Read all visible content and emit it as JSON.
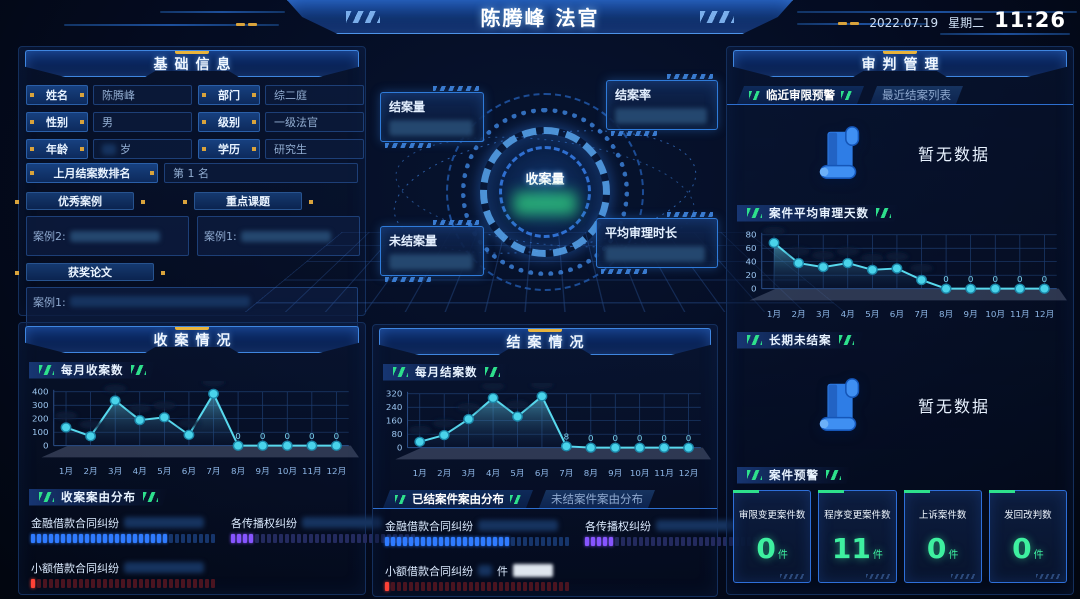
{
  "header": {
    "title": "陈腾峰 法官",
    "date": "2022.07.19",
    "weekday": "星期二",
    "time": "11:26"
  },
  "basic_info": {
    "title": "基础信息",
    "fields": [
      {
        "label": "姓名",
        "value": "陈腾峰"
      },
      {
        "label": "部门",
        "value": "综二庭"
      },
      {
        "label": "性别",
        "value": "男"
      },
      {
        "label": "级别",
        "value": "一级法官"
      },
      {
        "label": "年龄",
        "value": "岁",
        "censored": true
      },
      {
        "label": "学历",
        "value": "研究生"
      }
    ],
    "rank": {
      "label": "上月结案数排名",
      "value": "第 1 名"
    },
    "excellent": {
      "label": "优秀案例",
      "content": "案例2:"
    },
    "key_topic": {
      "label": "重点课题",
      "content": "案例1:"
    },
    "award": {
      "label": "获奖论文",
      "content": "案例1:"
    }
  },
  "center": {
    "core_label": "收案量",
    "callouts": [
      {
        "label": "结案量"
      },
      {
        "label": "结案率"
      },
      {
        "label": "未结案量"
      },
      {
        "label": "平均审理时长"
      }
    ]
  },
  "intake": {
    "title": "收案情况",
    "chart_badge": "每月收案数",
    "dist_badge": "收案案由分布",
    "bars": [
      {
        "label": "金融借款合同纠纷",
        "color_key": "blue",
        "filled": 23,
        "total": 31
      },
      {
        "label": "各传播权纠纷",
        "color_key": "purple",
        "filled": 4,
        "total": 31
      },
      {
        "label": "小额借款合同纠纷",
        "color_key": "red",
        "filled": 1,
        "total": 31
      }
    ]
  },
  "closure": {
    "title": "结案情况",
    "chart_badge": "每月结案数",
    "tabs": [
      {
        "label": "已结案件案由分布",
        "active": true
      },
      {
        "label": "未结案件案由分布",
        "active": false
      }
    ],
    "bars": [
      {
        "label": "金融借款合同纠纷",
        "color_key": "blue",
        "filled": 21,
        "total": 31
      },
      {
        "label": "各传播权纠纷",
        "color_key": "purple",
        "filled": 5,
        "total": 31
      },
      {
        "label": "小额借款合同纠纷",
        "color_key": "red",
        "filled": 1,
        "total": 31,
        "suffix": "件"
      }
    ]
  },
  "trial": {
    "title": "审判管理",
    "tabs": [
      {
        "label": "临近审限预警",
        "active": true
      },
      {
        "label": "最近结案列表",
        "active": false
      }
    ],
    "no_data_1": "暂无数据",
    "avg_badge": "案件平均审理天数",
    "long_badge": "长期未结案",
    "no_data_2": "暂无数据",
    "warn_badge": "案件预警",
    "stats": [
      {
        "label": "审限变更案件数",
        "value": "0",
        "unit": "件"
      },
      {
        "label": "程序变更案件数",
        "value": "11",
        "unit": "件"
      },
      {
        "label": "上诉案件数",
        "value": "0",
        "unit": "件"
      },
      {
        "label": "发回改判数",
        "value": "0",
        "unit": "件"
      }
    ]
  },
  "chart_data": [
    {
      "id": "intake_monthly",
      "type": "line",
      "title": "每月收案数",
      "categories": [
        "1月",
        "2月",
        "3月",
        "4月",
        "5月",
        "6月",
        "7月",
        "8月",
        "9月",
        "10月",
        "11月",
        "12月"
      ],
      "values": [
        135,
        70,
        335,
        190,
        210,
        80,
        385,
        0,
        0,
        0,
        0,
        0
      ],
      "point_labels": [
        "",
        "",
        "",
        "",
        "",
        "",
        "",
        "0",
        "0",
        "0",
        "0",
        "0"
      ],
      "yticks": [
        0,
        100,
        200,
        300,
        400
      ],
      "ylim": [
        0,
        400
      ],
      "grid": true,
      "legend": "none"
    },
    {
      "id": "closure_monthly",
      "type": "line",
      "title": "每月结案数",
      "categories": [
        "1月",
        "2月",
        "3月",
        "4月",
        "5月",
        "6月",
        "7月",
        "8月",
        "9月",
        "10月",
        "11月",
        "12月"
      ],
      "values": [
        35,
        75,
        170,
        295,
        185,
        305,
        8,
        0,
        0,
        0,
        0,
        0
      ],
      "point_labels": [
        "",
        "",
        "",
        "",
        "",
        "",
        "8",
        "0",
        "0",
        "0",
        "0",
        "0"
      ],
      "yticks": [
        0,
        80,
        160,
        240,
        320
      ],
      "ylim": [
        0,
        320
      ],
      "grid": true,
      "legend": "none"
    },
    {
      "id": "avg_trial_days",
      "type": "line",
      "title": "案件平均审理天数",
      "categories": [
        "1月",
        "2月",
        "3月",
        "4月",
        "5月",
        "6月",
        "7月",
        "8月",
        "9月",
        "10月",
        "11月",
        "12月"
      ],
      "values": [
        68,
        38,
        32,
        38,
        28,
        30,
        13,
        0,
        0,
        0,
        0,
        0
      ],
      "point_labels": [
        "",
        "",
        "",
        "",
        "",
        "",
        "",
        "0",
        "0",
        "0",
        "0",
        "0"
      ],
      "yticks": [
        0,
        20,
        40,
        60,
        80
      ],
      "ylim": [
        0,
        80
      ],
      "grid": true,
      "legend": "none"
    }
  ],
  "colors": {
    "accent_blue": "#3f86e0",
    "accent_cyan": "#57d8f0",
    "accent_green": "#3ef0a0",
    "accent_yellow": "#e8b33c",
    "line_color": "#58d9ee",
    "bars": {
      "blue": {
        "on": "#2f7bff",
        "off": "#16356b"
      },
      "purple": {
        "on": "#8655ff",
        "off": "#232a5e"
      },
      "red": {
        "on": "#ff4136",
        "off": "#4a1420"
      }
    }
  }
}
